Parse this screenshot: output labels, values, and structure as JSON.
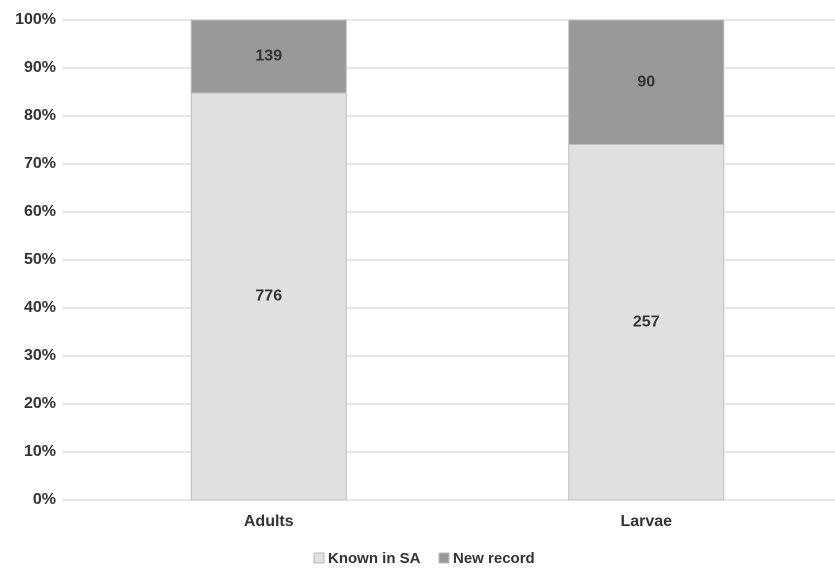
{
  "chart_data": {
    "type": "bar",
    "stacking": "percent",
    "categories": [
      "Adults",
      "Larvae"
    ],
    "series": [
      {
        "name": "Known in SA",
        "color": "#e0e0e0",
        "values": [
          776,
          257
        ]
      },
      {
        "name": "New record",
        "color": "#999999",
        "values": [
          139,
          90
        ]
      }
    ],
    "ylim": [
      0,
      100
    ],
    "yticks": [
      {
        "value": 0,
        "label": "0%"
      },
      {
        "value": 10,
        "label": "10%"
      },
      {
        "value": 20,
        "label": "20%"
      },
      {
        "value": 30,
        "label": "30%"
      },
      {
        "value": 40,
        "label": "40%"
      },
      {
        "value": 50,
        "label": "50%"
      },
      {
        "value": 60,
        "label": "60%"
      },
      {
        "value": 70,
        "label": "70%"
      },
      {
        "value": 80,
        "label": "80%"
      },
      {
        "value": 90,
        "label": "90%"
      },
      {
        "value": 100,
        "label": "100%"
      }
    ],
    "grid": true,
    "legend": "bottom"
  }
}
